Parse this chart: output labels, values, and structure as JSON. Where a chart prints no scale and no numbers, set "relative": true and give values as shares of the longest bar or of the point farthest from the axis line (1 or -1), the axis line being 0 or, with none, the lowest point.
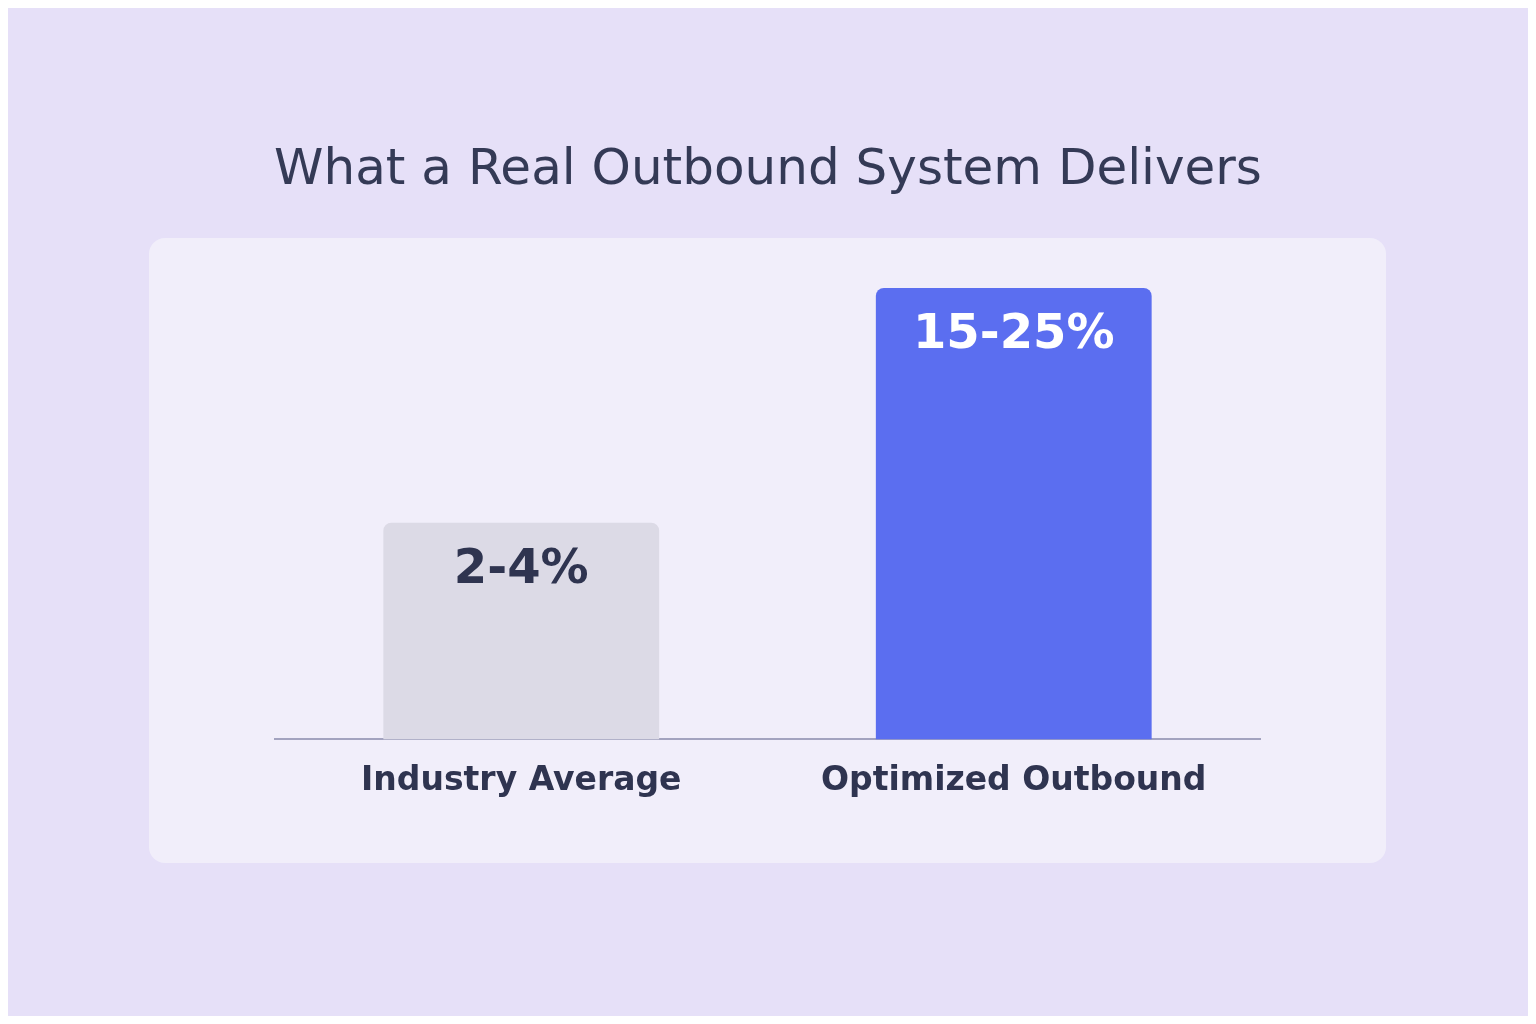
{
  "chart_data": {
    "type": "bar",
    "title": "What a Real Outbound System Delivers",
    "categories": [
      "Industry Average",
      "Optimized Outbound"
    ],
    "values": [
      0.48,
      1
    ],
    "colors": [
      "#dcdae6",
      "#5b6ef0"
    ],
    "relative": true,
    "annotations": [
      {
        "text": "2-4%",
        "x": "Industry Average",
        "y": 0.48
      },
      {
        "text": "15-25%",
        "x": "Optimized Outbound",
        "y": 1
      }
    ],
    "grid": false,
    "legend": false
  }
}
